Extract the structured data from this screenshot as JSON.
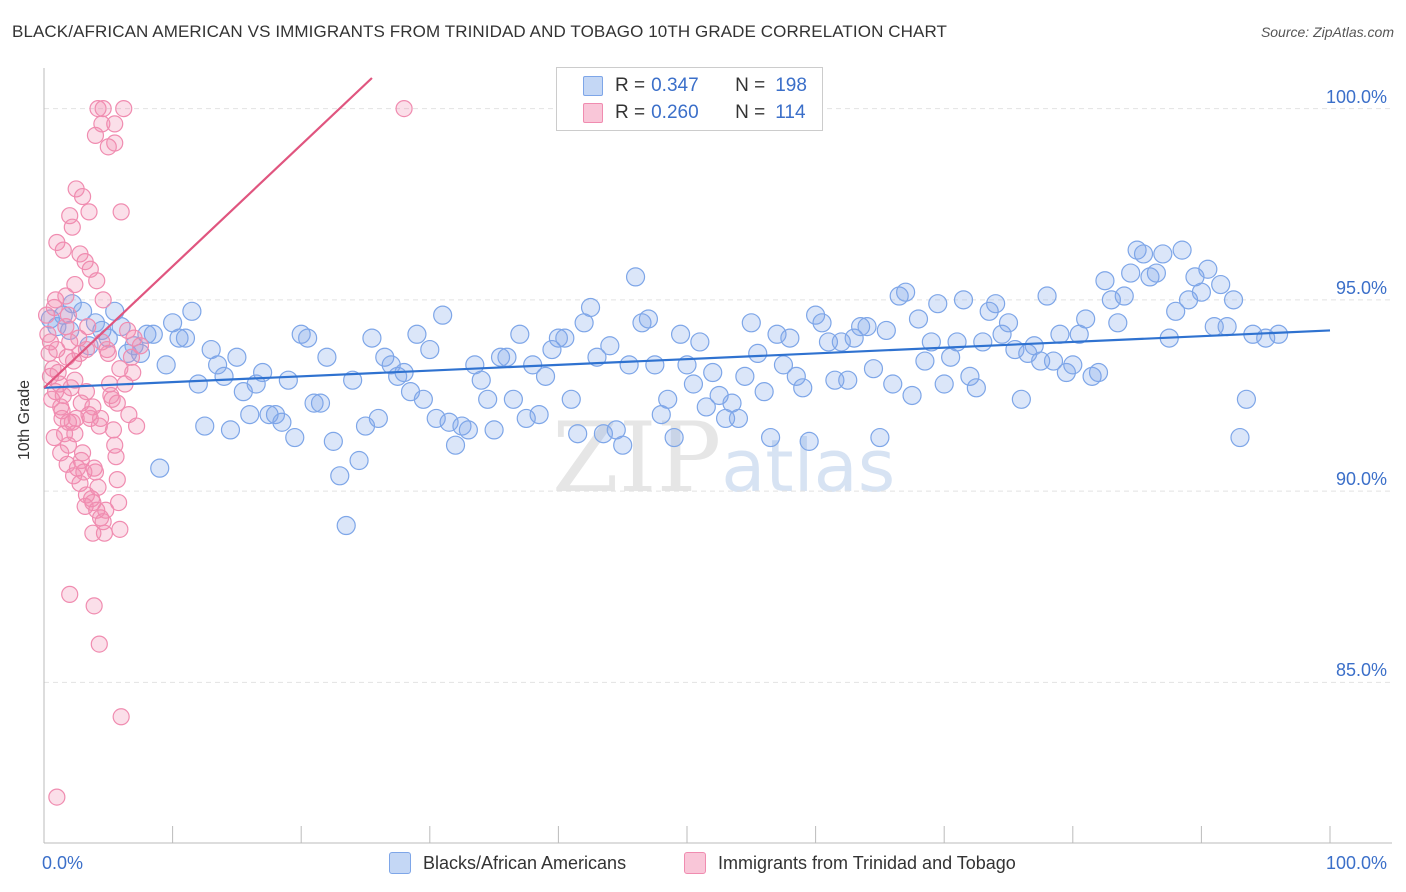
{
  "title": "BLACK/AFRICAN AMERICAN VS IMMIGRANTS FROM TRINIDAD AND TOBAGO 10TH GRADE CORRELATION CHART",
  "source": "Source: ZipAtlas.com",
  "watermark": {
    "zip": "ZIP",
    "atlas": "atlas"
  },
  "legend": {
    "rows": [
      {
        "r_label": "R =",
        "r_value": "0.347",
        "n_label": "N =",
        "n_value": "198",
        "color": "#8fb4ea"
      },
      {
        "r_label": "R =",
        "r_value": "0.260",
        "n_label": "N =",
        "n_value": "114",
        "color": "#f2a0bd"
      }
    ]
  },
  "bottom_legend": {
    "series1": "Blacks/African Americans",
    "series2": "Immigrants from Trinidad and Tobago"
  },
  "chart_data": {
    "type": "scatter",
    "title": "BLACK/AFRICAN AMERICAN VS IMMIGRANTS FROM TRINIDAD AND TOBAGO 10TH GRADE CORRELATION CHART",
    "xlabel": "",
    "ylabel": "10th Grade",
    "xlim": [
      0,
      100
    ],
    "ylim": [
      80.8,
      100.8
    ],
    "y_ticks": [
      85.0,
      90.0,
      95.0,
      100.0
    ],
    "y_tick_labels": [
      "85.0%",
      "90.0%",
      "95.0%",
      "100.0%"
    ],
    "x_tick_labels": [
      "0.0%",
      "100.0%"
    ],
    "series": [
      {
        "name": "Blacks/African Americans",
        "color": "#7ea6e8",
        "line_color": "#2f72d0",
        "r": 0.347,
        "n": 198,
        "trend": {
          "x0": 0,
          "y0": 92.7,
          "x1": 100,
          "y1": 94.2
        },
        "points": [
          [
            0.5,
            94.5
          ],
          [
            1,
            94.3
          ],
          [
            1.5,
            94.6
          ],
          [
            2,
            94.2
          ],
          [
            2.2,
            94.9
          ],
          [
            3,
            94.7
          ],
          [
            3.5,
            93.8
          ],
          [
            4,
            94.4
          ],
          [
            4.5,
            94.2
          ],
          [
            5,
            94.0
          ],
          [
            5.5,
            94.7
          ],
          [
            6,
            94.3
          ],
          [
            6.5,
            93.6
          ],
          [
            7,
            93.8
          ],
          [
            7.5,
            93.6
          ],
          [
            8,
            94.1
          ],
          [
            8.5,
            94.1
          ],
          [
            9,
            90.6
          ],
          [
            9.5,
            93.3
          ],
          [
            10,
            94.4
          ],
          [
            10.5,
            94.0
          ],
          [
            11,
            94.0
          ],
          [
            11.5,
            94.7
          ],
          [
            12,
            92.8
          ],
          [
            12.5,
            91.7
          ],
          [
            13,
            93.7
          ],
          [
            13.5,
            93.3
          ],
          [
            14,
            93.0
          ],
          [
            14.5,
            91.6
          ],
          [
            15,
            93.5
          ],
          [
            15.5,
            92.6
          ],
          [
            16,
            92.0
          ],
          [
            16.5,
            92.8
          ],
          [
            17,
            93.1
          ],
          [
            17.5,
            92.0
          ],
          [
            18,
            92.0
          ],
          [
            18.5,
            91.8
          ],
          [
            19,
            92.9
          ],
          [
            19.5,
            91.4
          ],
          [
            20,
            94.1
          ],
          [
            20.5,
            94.0
          ],
          [
            21,
            92.3
          ],
          [
            21.5,
            92.3
          ],
          [
            22,
            93.5
          ],
          [
            22.5,
            91.3
          ],
          [
            23,
            90.4
          ],
          [
            23.5,
            89.1
          ],
          [
            24,
            92.9
          ],
          [
            24.5,
            90.8
          ],
          [
            25,
            91.7
          ],
          [
            25.5,
            94.0
          ],
          [
            26,
            91.9
          ],
          [
            26.5,
            93.5
          ],
          [
            27,
            93.3
          ],
          [
            27.5,
            93.0
          ],
          [
            28,
            93.1
          ],
          [
            28.5,
            92.6
          ],
          [
            29,
            94.1
          ],
          [
            29.5,
            92.4
          ],
          [
            30,
            93.7
          ],
          [
            30.5,
            91.9
          ],
          [
            31,
            94.6
          ],
          [
            31.5,
            91.8
          ],
          [
            32,
            91.2
          ],
          [
            32.5,
            91.7
          ],
          [
            33,
            91.6
          ],
          [
            33.5,
            93.3
          ],
          [
            34,
            92.9
          ],
          [
            34.5,
            92.4
          ],
          [
            35,
            91.6
          ],
          [
            35.5,
            93.5
          ],
          [
            36,
            93.5
          ],
          [
            36.5,
            92.4
          ],
          [
            37,
            94.1
          ],
          [
            37.5,
            91.9
          ],
          [
            38,
            93.3
          ],
          [
            38.5,
            92.0
          ],
          [
            39,
            93.0
          ],
          [
            39.5,
            93.7
          ],
          [
            40,
            94.0
          ],
          [
            40.5,
            94.0
          ],
          [
            41,
            92.4
          ],
          [
            41.5,
            91.5
          ],
          [
            42,
            94.4
          ],
          [
            42.5,
            94.8
          ],
          [
            43,
            93.5
          ],
          [
            43.5,
            91.5
          ],
          [
            44,
            93.8
          ],
          [
            44.5,
            91.6
          ],
          [
            45,
            91.2
          ],
          [
            45.5,
            93.3
          ],
          [
            46,
            95.6
          ],
          [
            46.5,
            94.4
          ],
          [
            47,
            94.5
          ],
          [
            47.5,
            93.3
          ],
          [
            48,
            92.0
          ],
          [
            48.5,
            92.4
          ],
          [
            49,
            91.4
          ],
          [
            49.5,
            94.1
          ],
          [
            50,
            93.3
          ],
          [
            50.5,
            92.8
          ],
          [
            51,
            93.9
          ],
          [
            51.5,
            92.2
          ],
          [
            52,
            93.1
          ],
          [
            52.5,
            92.5
          ],
          [
            53,
            91.9
          ],
          [
            53.5,
            92.3
          ],
          [
            54,
            91.9
          ],
          [
            54.5,
            93.0
          ],
          [
            55,
            94.4
          ],
          [
            55.5,
            93.6
          ],
          [
            56,
            92.6
          ],
          [
            56.5,
            91.4
          ],
          [
            57,
            94.1
          ],
          [
            57.5,
            93.3
          ],
          [
            58,
            94.0
          ],
          [
            58.5,
            93.0
          ],
          [
            59,
            92.7
          ],
          [
            59.5,
            91.3
          ],
          [
            60,
            94.6
          ],
          [
            60.5,
            94.4
          ],
          [
            61,
            93.9
          ],
          [
            61.5,
            92.9
          ],
          [
            62,
            93.9
          ],
          [
            62.5,
            92.9
          ],
          [
            63,
            94.0
          ],
          [
            63.5,
            94.3
          ],
          [
            64,
            94.3
          ],
          [
            64.5,
            93.2
          ],
          [
            65,
            91.4
          ],
          [
            65.5,
            94.2
          ],
          [
            66,
            92.8
          ],
          [
            66.5,
            95.1
          ],
          [
            67,
            95.2
          ],
          [
            67.5,
            92.5
          ],
          [
            68,
            94.5
          ],
          [
            68.5,
            93.4
          ],
          [
            69,
            93.9
          ],
          [
            69.5,
            94.9
          ],
          [
            70,
            92.8
          ],
          [
            70.5,
            93.5
          ],
          [
            71,
            93.9
          ],
          [
            71.5,
            95.0
          ],
          [
            72,
            93.0
          ],
          [
            72.5,
            92.7
          ],
          [
            73,
            93.9
          ],
          [
            73.5,
            94.7
          ],
          [
            74,
            94.9
          ],
          [
            74.5,
            94.1
          ],
          [
            75,
            94.4
          ],
          [
            75.5,
            93.7
          ],
          [
            76,
            92.4
          ],
          [
            76.5,
            93.6
          ],
          [
            77,
            93.8
          ],
          [
            77.5,
            93.4
          ],
          [
            78,
            95.1
          ],
          [
            78.5,
            93.4
          ],
          [
            79,
            94.1
          ],
          [
            79.5,
            93.1
          ],
          [
            80,
            93.3
          ],
          [
            80.5,
            94.1
          ],
          [
            81,
            94.5
          ],
          [
            81.5,
            93.0
          ],
          [
            82,
            93.1
          ],
          [
            82.5,
            95.5
          ],
          [
            83,
            95.0
          ],
          [
            83.5,
            94.4
          ],
          [
            84,
            95.1
          ],
          [
            84.5,
            95.7
          ],
          [
            85,
            96.3
          ],
          [
            85.5,
            96.2
          ],
          [
            86,
            95.6
          ],
          [
            86.5,
            95.7
          ],
          [
            87,
            96.2
          ],
          [
            87.5,
            94.0
          ],
          [
            88,
            94.7
          ],
          [
            88.5,
            96.3
          ],
          [
            89,
            95.0
          ],
          [
            89.5,
            95.6
          ],
          [
            90,
            95.2
          ],
          [
            90.5,
            95.8
          ],
          [
            91,
            94.3
          ],
          [
            91.5,
            95.4
          ],
          [
            92,
            94.3
          ],
          [
            92.5,
            95.0
          ],
          [
            93,
            91.4
          ],
          [
            93.5,
            92.4
          ],
          [
            94,
            94.1
          ],
          [
            95,
            94.0
          ],
          [
            96,
            94.1
          ]
        ]
      },
      {
        "name": "Immigrants from Trinidad and Tobago",
        "color": "#f08cb0",
        "line_color": "#e0557f",
        "r": 0.26,
        "n": 114,
        "trend": {
          "x0": 0,
          "y0": 92.7,
          "x1": 25.5,
          "y1": 100.8
        },
        "points": [
          [
            0.2,
            94.6
          ],
          [
            0.3,
            94.1
          ],
          [
            0.4,
            93.6
          ],
          [
            0.5,
            93.9
          ],
          [
            0.6,
            92.4
          ],
          [
            0.7,
            93.2
          ],
          [
            0.8,
            94.8
          ],
          [
            0.9,
            95.0
          ],
          [
            1.0,
            93.7
          ],
          [
            1.1,
            93.1
          ],
          [
            1.2,
            92.8
          ],
          [
            1.3,
            92.2
          ],
          [
            1.4,
            91.9
          ],
          [
            1.5,
            92.5
          ],
          [
            1.6,
            91.5
          ],
          [
            1.7,
            94.3
          ],
          [
            1.8,
            93.5
          ],
          [
            1.9,
            94.6
          ],
          [
            2.0,
            93.9
          ],
          [
            2.1,
            92.7
          ],
          [
            2.2,
            91.8
          ],
          [
            2.3,
            93.4
          ],
          [
            2.4,
            92.9
          ],
          [
            2.5,
            91.9
          ],
          [
            2.6,
            90.6
          ],
          [
            2.7,
            94.0
          ],
          [
            2.8,
            93.6
          ],
          [
            2.9,
            92.3
          ],
          [
            3.0,
            91.0
          ],
          [
            3.1,
            90.5
          ],
          [
            3.2,
            89.6
          ],
          [
            3.3,
            93.7
          ],
          [
            3.4,
            94.3
          ],
          [
            3.5,
            92.0
          ],
          [
            3.6,
            91.9
          ],
          [
            3.7,
            89.8
          ],
          [
            3.8,
            88.9
          ],
          [
            3.9,
            90.6
          ],
          [
            4.0,
            90.5
          ],
          [
            4.1,
            89.5
          ],
          [
            4.2,
            90.1
          ],
          [
            4.3,
            91.7
          ],
          [
            4.4,
            91.9
          ],
          [
            4.5,
            93.9
          ],
          [
            4.6,
            89.2
          ],
          [
            4.7,
            88.9
          ],
          [
            4.8,
            89.5
          ],
          [
            4.9,
            93.7
          ],
          [
            5.0,
            93.6
          ],
          [
            5.1,
            92.8
          ],
          [
            5.2,
            92.5
          ],
          [
            5.3,
            92.4
          ],
          [
            5.4,
            91.6
          ],
          [
            5.5,
            91.2
          ],
          [
            5.6,
            90.9
          ],
          [
            5.7,
            90.3
          ],
          [
            5.8,
            89.7
          ],
          [
            5.9,
            89.0
          ],
          [
            1.0,
            96.5
          ],
          [
            1.5,
            96.3
          ],
          [
            2.0,
            97.2
          ],
          [
            2.5,
            97.9
          ],
          [
            3.0,
            97.7
          ],
          [
            3.5,
            97.3
          ],
          [
            4.0,
            99.3
          ],
          [
            4.5,
            99.6
          ],
          [
            5.0,
            99.0
          ],
          [
            5.5,
            99.1
          ],
          [
            4.2,
            100.0
          ],
          [
            4.6,
            100.0
          ],
          [
            5.5,
            99.6
          ],
          [
            6.0,
            97.3
          ],
          [
            6.2,
            100.0
          ],
          [
            2.2,
            96.9
          ],
          [
            2.8,
            96.2
          ],
          [
            3.2,
            96.0
          ],
          [
            3.6,
            95.8
          ],
          [
            4.1,
            95.5
          ],
          [
            4.6,
            95.0
          ],
          [
            2.4,
            95.4
          ],
          [
            1.7,
            95.1
          ],
          [
            3.3,
            92.6
          ],
          [
            3.8,
            92.2
          ],
          [
            1.9,
            91.2
          ],
          [
            2.9,
            90.8
          ],
          [
            3.9,
            87.0
          ],
          [
            4.3,
            86.0
          ],
          [
            2.0,
            87.3
          ],
          [
            6.0,
            84.1
          ],
          [
            1.0,
            82.0
          ],
          [
            28.0,
            100.0
          ],
          [
            6.5,
            94.2
          ],
          [
            7.0,
            94.0
          ],
          [
            7.5,
            93.8
          ],
          [
            6.8,
            93.5
          ],
          [
            5.9,
            93.2
          ],
          [
            6.3,
            92.8
          ],
          [
            5.7,
            92.3
          ],
          [
            6.6,
            92.0
          ],
          [
            7.2,
            91.7
          ],
          [
            0.8,
            91.4
          ],
          [
            1.3,
            91.0
          ],
          [
            1.8,
            90.7
          ],
          [
            2.3,
            90.4
          ],
          [
            2.8,
            90.2
          ],
          [
            3.3,
            89.9
          ],
          [
            3.8,
            89.7
          ],
          [
            4.4,
            89.3
          ],
          [
            0.5,
            93.0
          ],
          [
            0.9,
            92.6
          ],
          [
            1.4,
            92.1
          ],
          [
            1.9,
            91.8
          ],
          [
            2.4,
            91.5
          ],
          [
            6.9,
            93.1
          ]
        ]
      }
    ]
  }
}
